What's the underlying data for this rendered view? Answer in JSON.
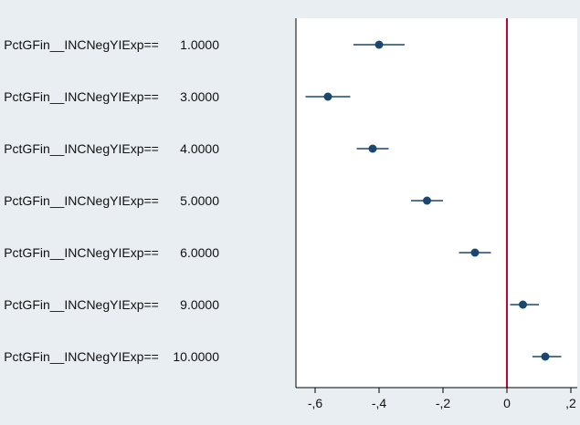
{
  "chart_data": {
    "type": "scatter",
    "subtype": "coefficient-plot-with-confidence-intervals",
    "categories": [
      "PctGFin__INCNegYIExp==      1.0000",
      "PctGFin__INCNegYIExp==      3.0000",
      "PctGFin__INCNegYIExp==      4.0000",
      "PctGFin__INCNegYIExp==      5.0000",
      "PctGFin__INCNegYIExp==      6.0000",
      "PctGFin__INCNegYIExp==      9.0000",
      "PctGFin__INCNegYIExp==    10.0000"
    ],
    "series": [
      {
        "estimates": [
          -0.4,
          -0.56,
          -0.42,
          -0.25,
          -0.1,
          0.05,
          0.12
        ],
        "ci_low": [
          -0.48,
          -0.63,
          -0.47,
          -0.3,
          -0.15,
          0.01,
          0.08
        ],
        "ci_high": [
          -0.32,
          -0.49,
          -0.37,
          -0.2,
          -0.05,
          0.1,
          0.17
        ]
      }
    ],
    "xlim": [
      -0.66,
      0.22
    ],
    "x_ticks": [
      -0.6,
      -0.4,
      -0.2,
      0,
      0.2
    ],
    "x_tick_labels": [
      "-,6",
      "-,4",
      "-,2",
      "0",
      ",2"
    ],
    "reference_line_x": 0,
    "grid": false,
    "title": "",
    "xlabel": "",
    "ylabel": "",
    "colors": {
      "background": "#e8eef2",
      "plot_background": "#ffffff",
      "marker": "#1a476f",
      "reference_line": "#c10534",
      "axis": "#000000"
    }
  }
}
